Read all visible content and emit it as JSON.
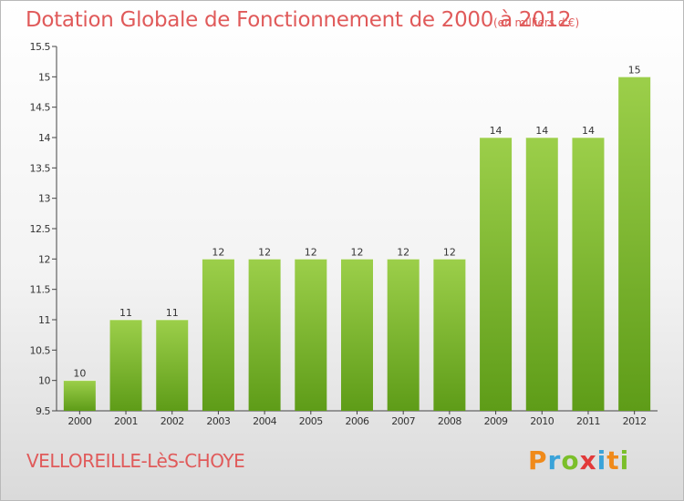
{
  "header": {
    "title": "Dotation Globale de Fonctionnement de 2000 à 2012",
    "subtitle": "(en milliers d'€)"
  },
  "footer": {
    "city": "VELLOREILLE-LèS-CHOYE",
    "logo": "Proxiti"
  },
  "colors": {
    "bar_top": "#9ccf4a",
    "bar_bottom": "#5e9c18",
    "title": "#e05a5a"
  },
  "chart_data": {
    "type": "bar",
    "title": "Dotation Globale de Fonctionnement de 2000 à 2012",
    "subtitle": "(en milliers d'€)",
    "xlabel": "",
    "ylabel": "",
    "categories": [
      "2000",
      "2001",
      "2002",
      "2003",
      "2004",
      "2005",
      "2006",
      "2007",
      "2008",
      "2009",
      "2010",
      "2011",
      "2012"
    ],
    "values": [
      10,
      11,
      11,
      12,
      12,
      12,
      12,
      12,
      12,
      14,
      14,
      14,
      15
    ],
    "data_labels": [
      "10",
      "11",
      "11",
      "12",
      "12",
      "12",
      "12",
      "12",
      "12",
      "14",
      "14",
      "14",
      "15"
    ],
    "ylim": [
      9.5,
      15.5
    ],
    "yticks": [
      "9.5",
      "10",
      "10.5",
      "11",
      "11.5",
      "12",
      "12.5",
      "13",
      "13.5",
      "14",
      "14.5",
      "15",
      "15.5"
    ],
    "grid": false,
    "legend": "none"
  }
}
